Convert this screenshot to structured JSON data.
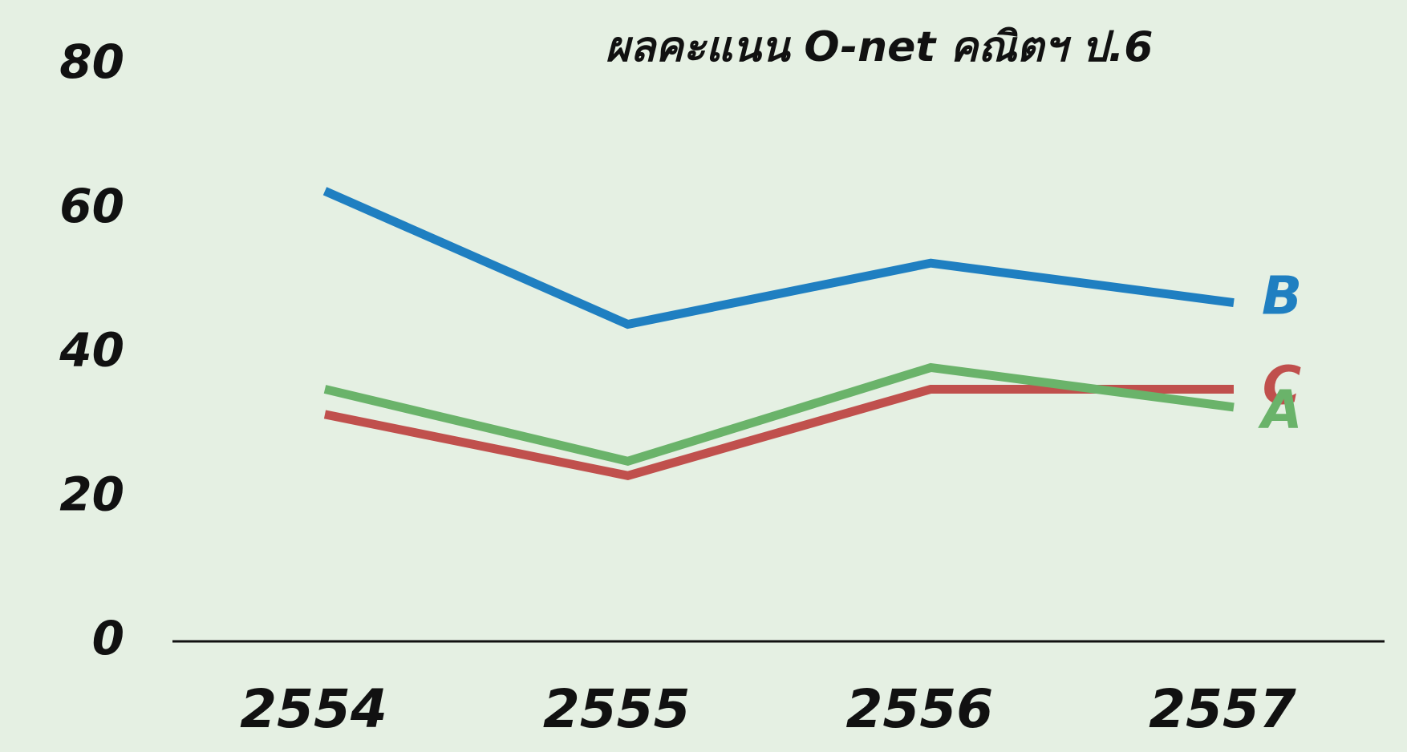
{
  "chart_data": {
    "type": "line",
    "title": "ผลคะแนน O-net คณิตฯ ป.6",
    "categories": [
      "2554",
      "2555",
      "2556",
      "2557"
    ],
    "series": [
      {
        "name": "B",
        "color": "#1f7fc1",
        "values": [
          62.5,
          44,
          52.5,
          47
        ]
      },
      {
        "name": "C",
        "color": "#c0504d",
        "values": [
          31.5,
          23,
          35,
          35
        ]
      },
      {
        "name": "A",
        "color": "#6ab36a",
        "values": [
          35,
          25,
          38,
          32.5
        ]
      }
    ],
    "ylim": [
      0,
      80
    ],
    "yticks": [
      0,
      20,
      40,
      60,
      80
    ],
    "grid": false
  }
}
